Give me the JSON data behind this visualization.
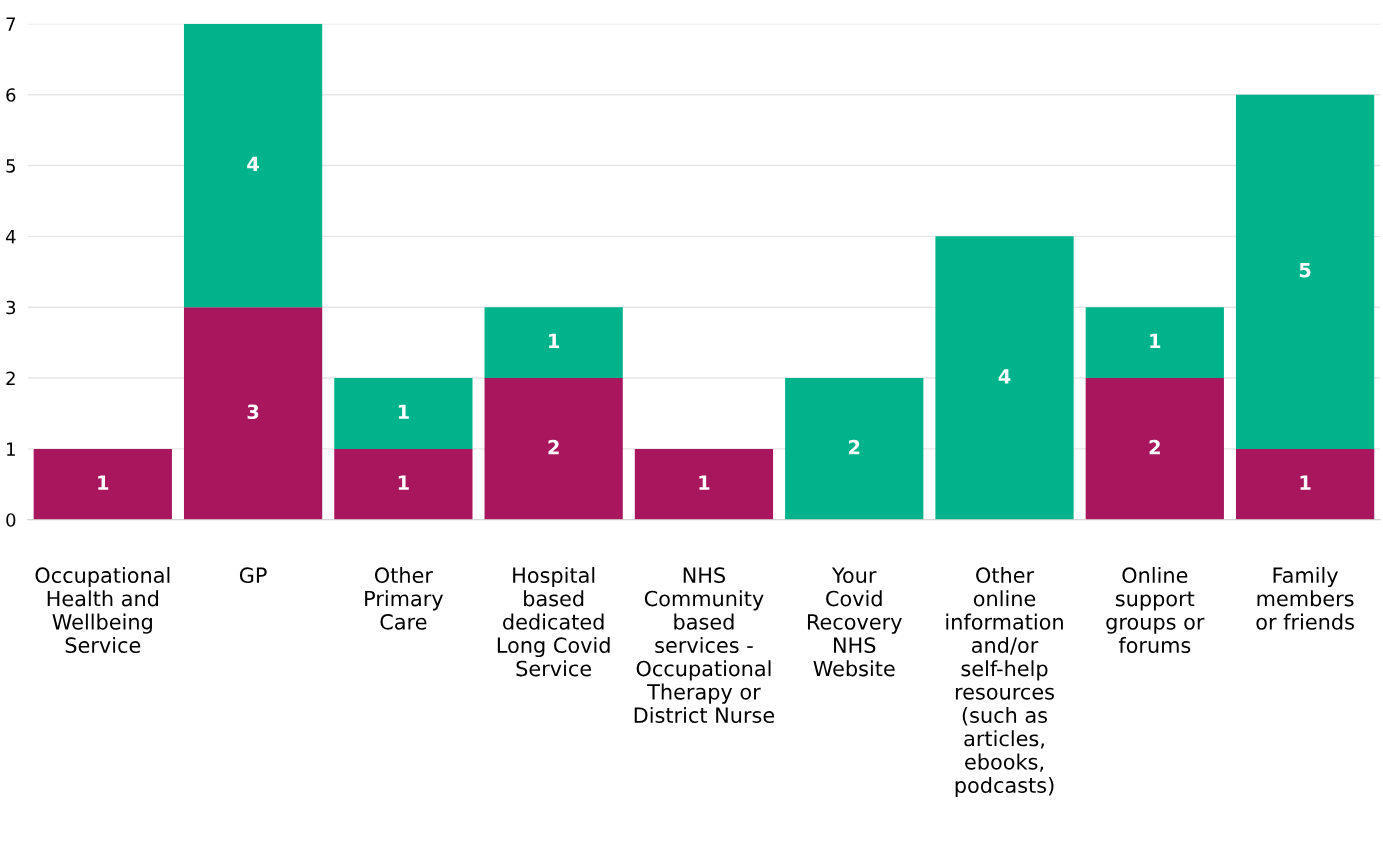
{
  "chart_data": {
    "type": "bar",
    "stacked": true,
    "data_labels": true,
    "grid": "y",
    "categories": [
      "Occupational\nHealth and\nWellbeing\nService",
      "GP",
      "Other\nPrimary\nCare",
      "Hospital\nbased\ndedicated\nLong Covid\nService",
      "NHS\nCommunity\nbased\nservices -\nOccupational\nTherapy or\nDistrict Nurse",
      "Your\nCovid\nRecovery\nNHS\nWebsite",
      "Other\nonline\ninformation\nand/or\nself-help\nresources\n(such as\narticles,\nebooks,\npodcasts)",
      "Online\nsupport\ngroups or\nforums",
      "Family\nmembers\nor friends"
    ],
    "series": [
      {
        "color": "#a8175e",
        "values": [
          1,
          3,
          1,
          2,
          1,
          null,
          null,
          2,
          1
        ]
      },
      {
        "color": "#00b38b",
        "values": [
          null,
          4,
          1,
          1,
          null,
          2,
          4,
          1,
          5
        ]
      }
    ],
    "ylim": [
      0,
      7
    ],
    "yticks": [
      0,
      1,
      2,
      3,
      4,
      5,
      6,
      7
    ]
  }
}
